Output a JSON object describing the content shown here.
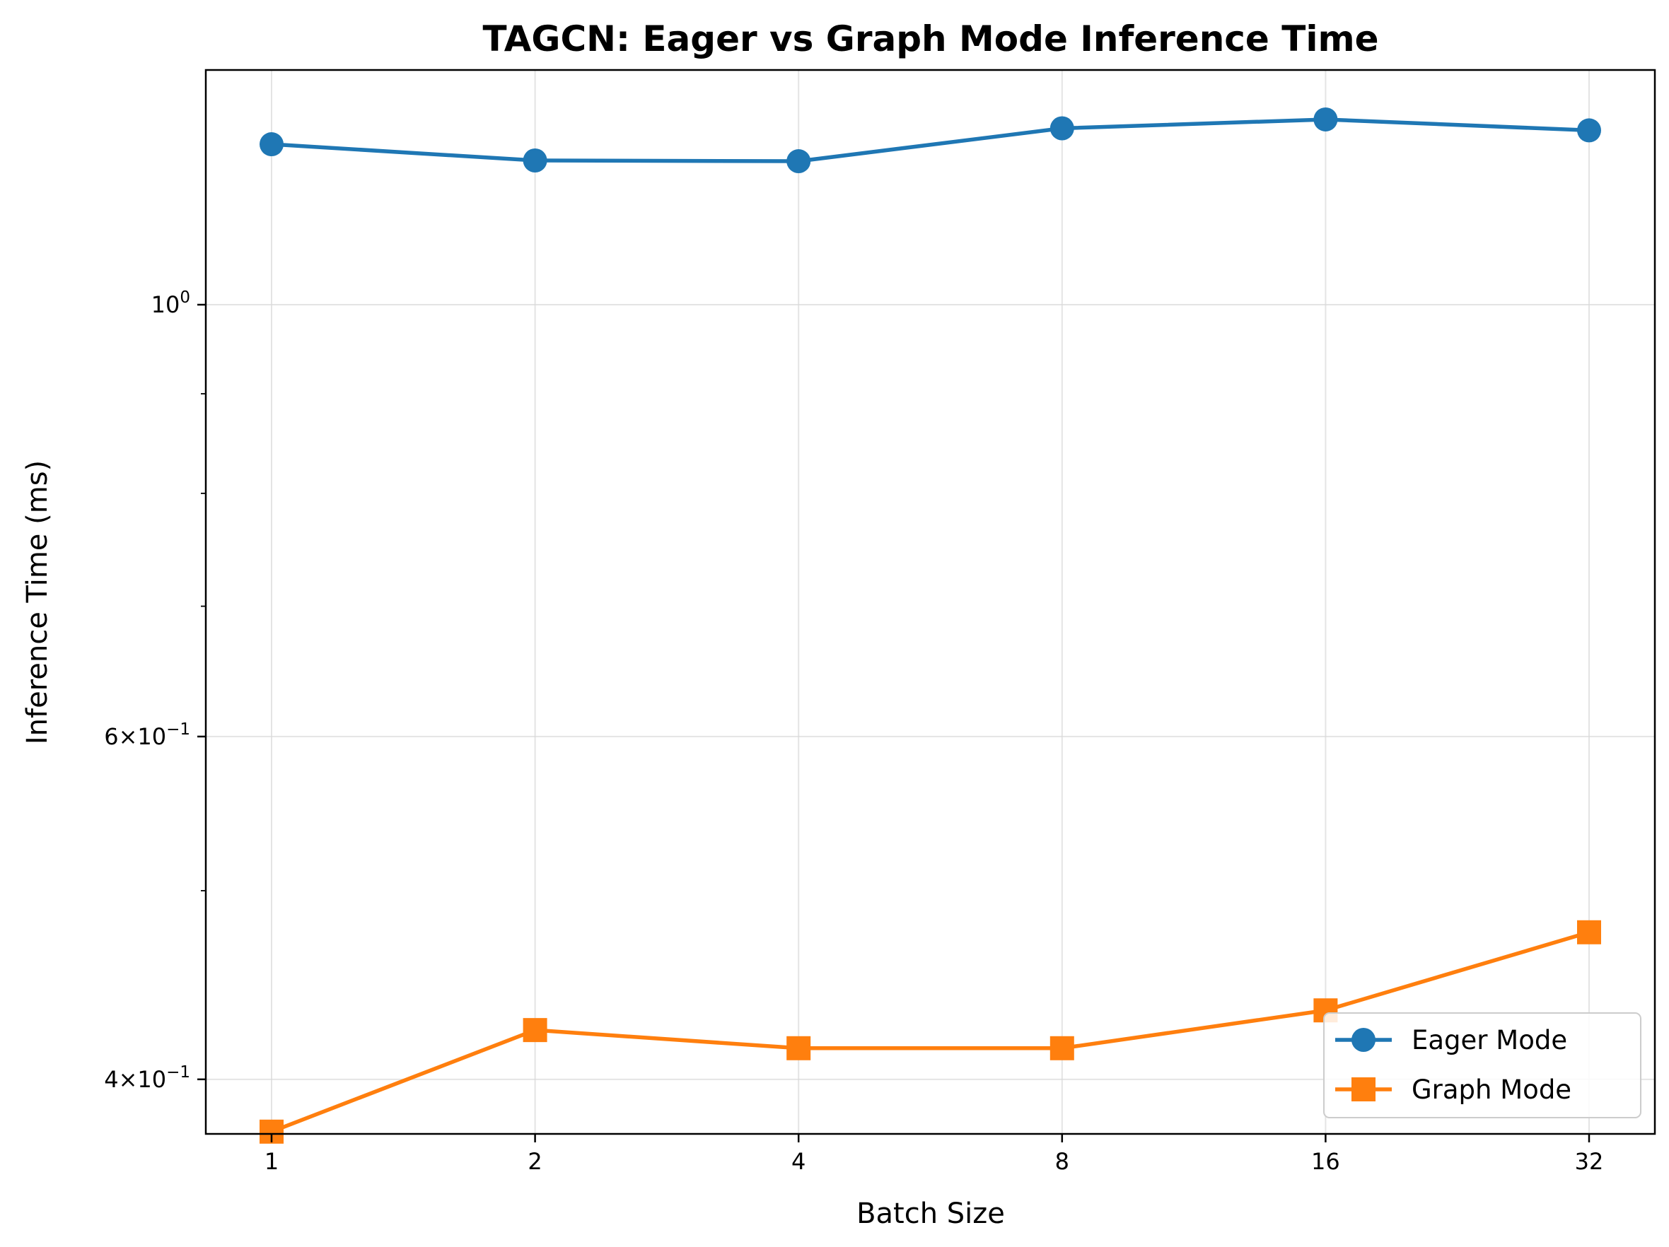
{
  "chart_data": {
    "type": "line",
    "title": "TAGCN: Eager vs Graph Mode Inference Time",
    "xlabel": "Batch Size",
    "ylabel": "Inference Time (ms)",
    "x": [
      1,
      2,
      4,
      8,
      16,
      32
    ],
    "x_tick_labels": [
      "1",
      "2",
      "4",
      "8",
      "16",
      "32"
    ],
    "x_scale": "log2",
    "y_scale": "log",
    "ylim": [
      0.375,
      1.32
    ],
    "y_ticks": [
      {
        "value": 1.0,
        "base": "10",
        "exp": "0",
        "coef": ""
      },
      {
        "value": 0.6,
        "base": "10",
        "exp": "−1",
        "coef": "6×"
      },
      {
        "value": 0.4,
        "base": "10",
        "exp": "−1",
        "coef": "4×"
      }
    ],
    "grid": true,
    "legend_position": "lower-right",
    "series": [
      {
        "name": "Eager Mode",
        "color": "#1f77b4",
        "marker": "circle",
        "values": [
          1.209,
          1.186,
          1.185,
          1.232,
          1.245,
          1.229
        ]
      },
      {
        "name": "Graph Mode",
        "color": "#ff7f0e",
        "marker": "square",
        "values": [
          0.376,
          0.424,
          0.415,
          0.415,
          0.434,
          0.476
        ]
      }
    ]
  }
}
